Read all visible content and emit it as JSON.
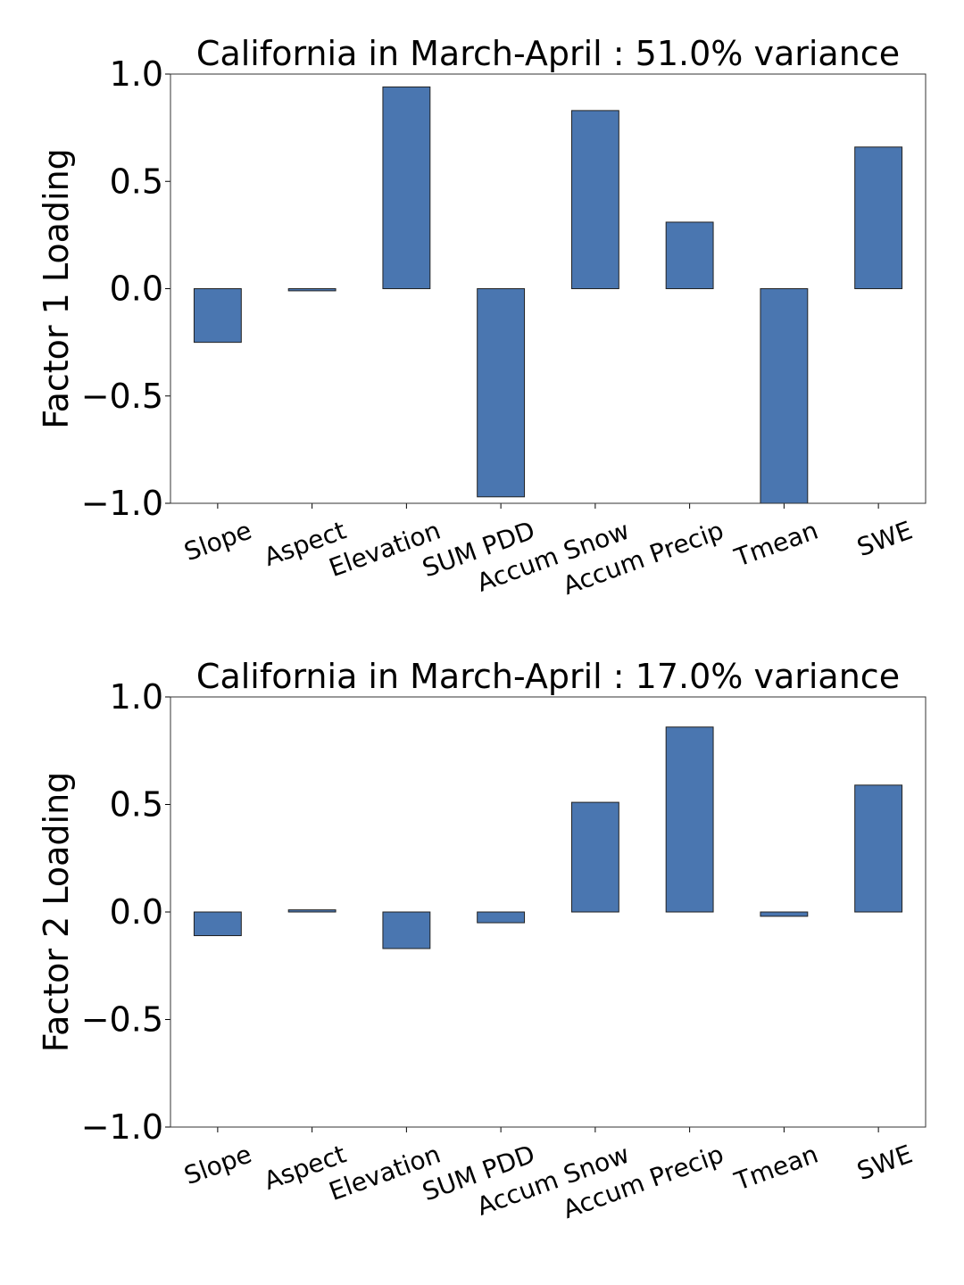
{
  "chart_data": [
    {
      "type": "bar",
      "title": "California in March-April : 51.0% variance",
      "xlabel": "",
      "ylabel": "Factor 1 Loading",
      "ylim": [
        -1.0,
        1.0
      ],
      "yticks": [
        "1.0",
        "0.5",
        "0.0",
        "−0.5",
        "−1.0"
      ],
      "ytick_values": [
        1.0,
        0.5,
        0.0,
        -0.5,
        -1.0
      ],
      "categories": [
        "Slope",
        "Aspect",
        "Elevation",
        "SUM PDD",
        "Accum Snow",
        "Accum Precip",
        "Tmean",
        "SWE"
      ],
      "values": [
        -0.25,
        -0.01,
        0.94,
        -0.97,
        0.83,
        0.31,
        -1.0,
        0.66
      ],
      "bar_color": "#4a76b0",
      "grid": false,
      "legend": "none"
    },
    {
      "type": "bar",
      "title": "California in March-April : 17.0% variance",
      "xlabel": "",
      "ylabel": "Factor 2 Loading",
      "ylim": [
        -1.0,
        1.0
      ],
      "yticks": [
        "1.0",
        "0.5",
        "0.0",
        "−0.5",
        "−1.0"
      ],
      "ytick_values": [
        1.0,
        0.5,
        0.0,
        -0.5,
        -1.0
      ],
      "categories": [
        "Slope",
        "Aspect",
        "Elevation",
        "SUM PDD",
        "Accum Snow",
        "Accum Precip",
        "Tmean",
        "SWE"
      ],
      "values": [
        -0.11,
        0.01,
        -0.17,
        -0.05,
        0.51,
        0.86,
        -0.02,
        0.59
      ],
      "bar_color": "#4a76b0",
      "grid": false,
      "legend": "none"
    }
  ]
}
